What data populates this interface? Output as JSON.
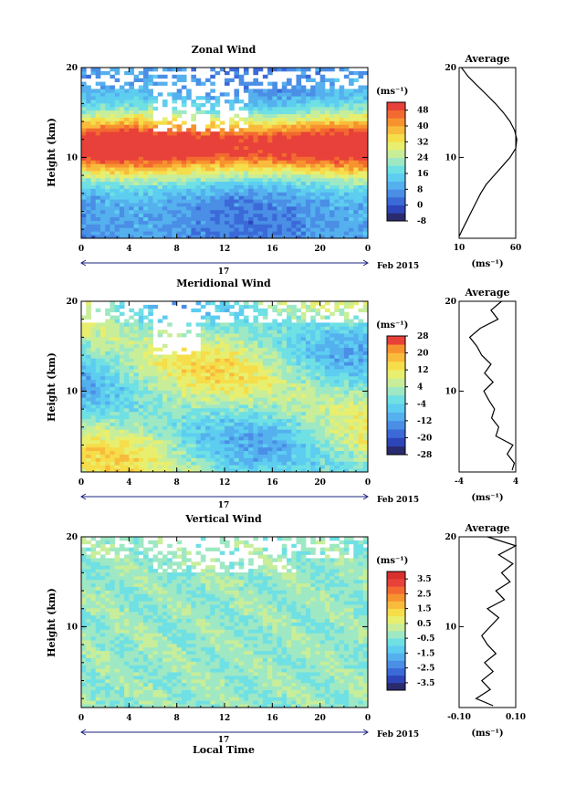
{
  "chart_data": [
    {
      "type": "heatmap",
      "title": "Zonal Wind",
      "ylabel": "Height (km)",
      "y_ticks": [
        "20",
        "10"
      ],
      "ylim": [
        1,
        20
      ],
      "x_ticks": [
        "0",
        "4",
        "8",
        "12",
        "16",
        "20",
        "0"
      ],
      "xlim": [
        0,
        24
      ],
      "date_label": "17",
      "month_label": "Feb 2015",
      "colorbar": {
        "unit": "(ms⁻¹)",
        "levels": [
          -8,
          -4,
          0,
          4,
          8,
          12,
          16,
          20,
          24,
          28,
          32,
          36,
          40,
          44,
          48,
          52
        ],
        "tick_labels": [
          "48",
          "40",
          "32",
          "24",
          "16",
          "8",
          "0",
          "-8"
        ],
        "tick_values": [
          48,
          40,
          32,
          24,
          16,
          8,
          0,
          -8
        ],
        "colors": [
          "#2a2a6e",
          "#2d45b8",
          "#3b6ad8",
          "#4a8ee6",
          "#55b0ee",
          "#5dcdf0",
          "#6fe0e4",
          "#9ee8c4",
          "#c8ee9a",
          "#e8ef6e",
          "#f6dd4a",
          "#f9bb3c",
          "#f7932f",
          "#f26a2f",
          "#e8413a"
        ]
      },
      "profile": {
        "title": "Average",
        "xlim": [
          10,
          60
        ],
        "x_ticks": [
          "10",
          "60"
        ],
        "xlabel": "(ms⁻¹)",
        "heights": [
          1.2,
          2,
          3,
          4,
          5,
          6,
          7,
          8,
          9,
          10,
          11,
          12,
          13,
          14,
          15,
          16,
          17,
          18,
          19,
          20
        ],
        "values": [
          10,
          13,
          17,
          21,
          25,
          29,
          34,
          41,
          48,
          55,
          60,
          61,
          59,
          55,
          49,
          42,
          34,
          26,
          18,
          12
        ]
      }
    },
    {
      "type": "heatmap",
      "title": "Meridional Wind",
      "ylabel": "Height (km)",
      "y_ticks": [
        "20",
        "10"
      ],
      "ylim": [
        1,
        20
      ],
      "x_ticks": [
        "0",
        "4",
        "8",
        "12",
        "16",
        "20",
        "0"
      ],
      "xlim": [
        0,
        24
      ],
      "date_label": "17",
      "month_label": "Feb 2015",
      "colorbar": {
        "unit": "(ms⁻¹)",
        "levels": [
          -28,
          -24,
          -20,
          -16,
          -12,
          -8,
          -4,
          0,
          4,
          8,
          12,
          16,
          20,
          24,
          28
        ],
        "tick_labels": [
          "28",
          "20",
          "12",
          "4",
          "-4",
          "-12",
          "-20",
          "-28"
        ],
        "tick_values": [
          28,
          20,
          12,
          4,
          -4,
          -12,
          -20,
          -28
        ],
        "colors": [
          "#2a2a6e",
          "#2d45b8",
          "#3b6ad8",
          "#4a8ee6",
          "#55b0ee",
          "#5dcdf0",
          "#6fe0e4",
          "#9ee8c4",
          "#c8ee9a",
          "#e8ef6e",
          "#f6dd4a",
          "#f9bb3c",
          "#f7932f",
          "#e8413a"
        ]
      },
      "profile": {
        "title": "Average",
        "xlim": [
          -4,
          4
        ],
        "x_ticks": [
          "-4",
          "4"
        ],
        "xlabel": "(ms⁻¹)",
        "heights": [
          1.2,
          2,
          3,
          4,
          5,
          6,
          7,
          8,
          9,
          10,
          11,
          12,
          13,
          14,
          15,
          16,
          17,
          18,
          19,
          20
        ],
        "values": [
          3.5,
          3.8,
          2.8,
          3.6,
          1.2,
          1.6,
          0.6,
          1.0,
          0.2,
          -0.5,
          0.8,
          -0.4,
          0.5,
          -0.8,
          -1.5,
          -2.5,
          -1.0,
          1.5,
          0.5,
          2.0
        ]
      }
    },
    {
      "type": "heatmap",
      "title": "Vertical Wind",
      "ylabel": "Height (km)",
      "xlabel": "Local Time",
      "y_ticks": [
        "20",
        "10"
      ],
      "ylim": [
        1,
        20
      ],
      "x_ticks": [
        "0",
        "4",
        "8",
        "12",
        "16",
        "20",
        "0"
      ],
      "xlim": [
        0,
        24
      ],
      "date_label": "17",
      "month_label": "Feb 2015",
      "colorbar": {
        "unit": "(ms⁻¹)",
        "levels": [
          -4,
          -3.5,
          -3,
          -2.5,
          -2,
          -1.5,
          -1,
          -0.5,
          0,
          0.5,
          1,
          1.5,
          2,
          2.5,
          3,
          3.5,
          4
        ],
        "tick_labels": [
          "3.5",
          "2.5",
          "1.5",
          "0.5",
          "-0.5",
          "-1.5",
          "-2.5",
          "-3.5"
        ],
        "tick_values": [
          3.5,
          2.5,
          1.5,
          0.5,
          -0.5,
          -1.5,
          -2.5,
          -3.5
        ],
        "colors": [
          "#2a2a6e",
          "#2d45b8",
          "#3b6ad8",
          "#4a8ee6",
          "#55b0ee",
          "#5dcdf0",
          "#6fe0e4",
          "#9ee8c4",
          "#c8ee9a",
          "#e8ef6e",
          "#f6dd4a",
          "#f9bb3c",
          "#f7932f",
          "#f26a2f",
          "#e8413a",
          "#d8302f"
        ]
      },
      "profile": {
        "title": "Average",
        "xlim": [
          -0.1,
          0.1
        ],
        "x_ticks": [
          "-0.10",
          "0.10"
        ],
        "xlabel": "(ms⁻¹)",
        "heights": [
          1.2,
          2,
          3,
          4,
          5,
          6,
          7,
          8,
          9,
          10,
          11,
          12,
          13,
          14,
          15,
          16,
          17,
          18,
          19,
          20
        ],
        "values": [
          0.02,
          -0.04,
          0.01,
          -0.02,
          0.02,
          -0.01,
          0.03,
          0.0,
          -0.02,
          0.01,
          0.04,
          0.0,
          0.06,
          0.03,
          0.08,
          0.05,
          0.09,
          0.04,
          0.1,
          0.0
        ]
      }
    }
  ]
}
